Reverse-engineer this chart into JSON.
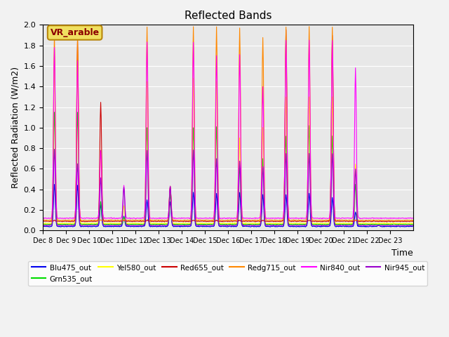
{
  "title": "Reflected Bands",
  "xlabel": "Time",
  "ylabel": "Reflected Radiation (W/m2)",
  "annotation": "VR_arable",
  "ylim": [
    0,
    2.0
  ],
  "yticks": [
    0.0,
    0.2,
    0.4,
    0.6,
    0.8,
    1.0,
    1.2,
    1.4,
    1.6,
    1.8,
    2.0
  ],
  "background_color": "#e8e8e8",
  "fig_bg_color": "#f2f2f2",
  "series_order": [
    "Blu475_out",
    "Grn535_out",
    "Yel580_out",
    "Red655_out",
    "Redg715_out",
    "Nir840_out",
    "Nir945_out"
  ],
  "series": {
    "Blu475_out": {
      "color": "#0000ee",
      "lw": 0.8
    },
    "Grn535_out": {
      "color": "#00dd00",
      "lw": 0.8
    },
    "Yel580_out": {
      "color": "#ffff00",
      "lw": 0.8
    },
    "Red655_out": {
      "color": "#cc0000",
      "lw": 0.8
    },
    "Redg715_out": {
      "color": "#ff8800",
      "lw": 0.8
    },
    "Nir840_out": {
      "color": "#ff00ff",
      "lw": 0.8
    },
    "Nir945_out": {
      "color": "#9900cc",
      "lw": 0.8
    }
  },
  "xtick_labels": [
    "Dec 8",
    "Dec 9",
    "Dec 10",
    "Dec 11",
    "Dec 12",
    "Dec 13",
    "Dec 14",
    "Dec 15",
    "Dec 16",
    "Dec 17",
    "Dec 18",
    "Dec 19",
    "Dec 20",
    "Dec 21",
    "Dec 22",
    "Dec 23"
  ],
  "baseline": {
    "Blu475_out": 0.04,
    "Grn535_out": 0.06,
    "Yel580_out": 0.07,
    "Red655_out": 0.09,
    "Redg715_out": 0.1,
    "Nir840_out": 0.12,
    "Nir945_out": 0.05
  },
  "day_peaks": {
    "Blu475_out": [
      0.45,
      0.44,
      0.25,
      0.14,
      0.3,
      0.28,
      0.37,
      0.36,
      0.37,
      0.35,
      0.35,
      0.36,
      0.32,
      0.18,
      0.05
    ],
    "Grn535_out": [
      1.15,
      1.15,
      0.28,
      0.13,
      1.0,
      0.35,
      1.0,
      1.01,
      0.63,
      0.7,
      0.92,
      1.02,
      0.92,
      0.45,
      0.05
    ],
    "Yel580_out": [
      1.6,
      1.6,
      0.75,
      0.24,
      1.45,
      0.42,
      1.48,
      1.45,
      0.9,
      1.0,
      1.3,
      1.3,
      1.3,
      0.65,
      0.05
    ],
    "Red655_out": [
      0.1,
      1.85,
      1.25,
      0.1,
      0.1,
      0.43,
      0.1,
      0.1,
      0.1,
      0.1,
      1.95,
      0.1,
      1.9,
      0.1,
      0.05
    ],
    "Redg715_out": [
      1.9,
      1.88,
      0.1,
      0.1,
      1.98,
      0.43,
      1.98,
      1.98,
      1.97,
      1.88,
      1.98,
      1.98,
      1.98,
      0.1,
      0.05
    ],
    "Nir840_out": [
      1.78,
      1.65,
      0.78,
      0.44,
      1.83,
      0.43,
      1.83,
      1.7,
      1.71,
      1.4,
      1.85,
      1.85,
      1.85,
      1.58,
      0.05
    ],
    "Nir945_out": [
      0.79,
      0.65,
      0.51,
      0.42,
      0.78,
      0.43,
      0.78,
      0.7,
      0.68,
      0.62,
      0.75,
      0.75,
      0.75,
      0.6,
      0.05
    ]
  }
}
